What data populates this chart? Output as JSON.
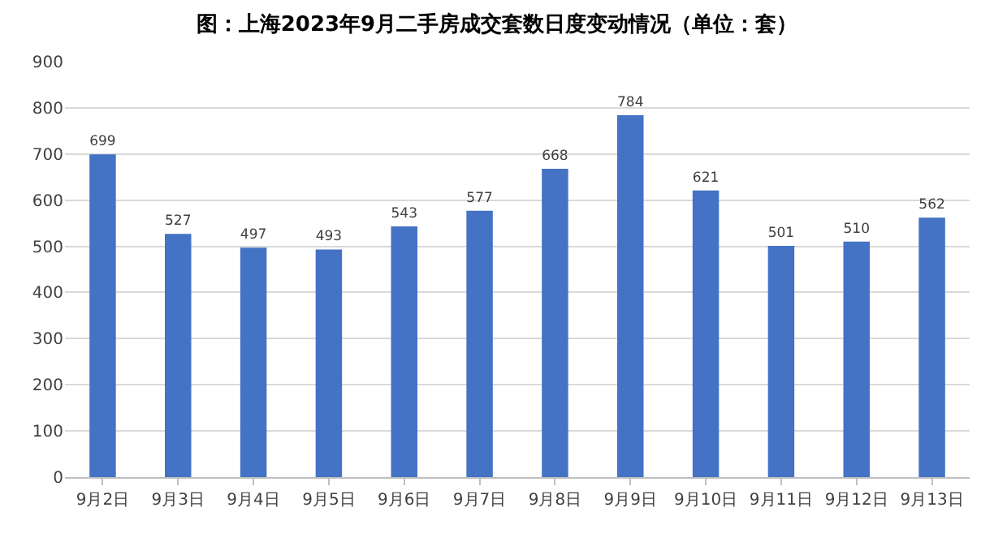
{
  "chart_data": {
    "type": "bar",
    "title": "图：上海2023年9月二手房成交套数日度变动情况（单位：套）",
    "categories": [
      "9月2日",
      "9月3日",
      "9月4日",
      "9月5日",
      "9月6日",
      "9月7日",
      "9月8日",
      "9月9日",
      "9月10日",
      "9月11日",
      "9月12日",
      "9月13日"
    ],
    "values": [
      699,
      527,
      497,
      493,
      543,
      577,
      668,
      784,
      621,
      501,
      510,
      562
    ],
    "color": "#4472c4",
    "ylim": [
      0,
      900
    ],
    "yticks": [
      0,
      100,
      200,
      300,
      400,
      500,
      600,
      700,
      800,
      900
    ],
    "grid": "y",
    "data_labels": true,
    "legend": false
  }
}
